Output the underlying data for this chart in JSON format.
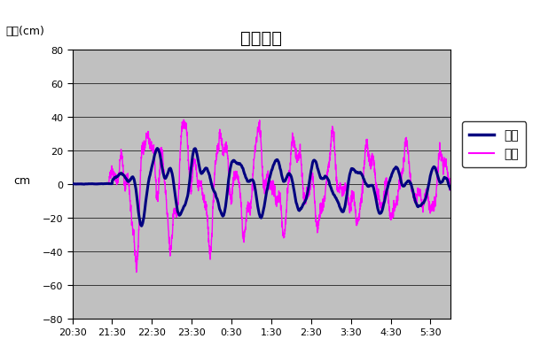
{
  "title": "カフルイ",
  "ylabel_top": "高さ(cm)",
  "ylabel_side": "cm",
  "legend_observed": "観測",
  "legend_computed": "計算",
  "ylim": [
    -80,
    80
  ],
  "yticks": [
    -80,
    -60,
    -40,
    -20,
    0,
    20,
    40,
    60,
    80
  ],
  "xlim": [
    0,
    570
  ],
  "xtick_labels": [
    "20:30",
    "21:30",
    "22:30",
    "23:30",
    "0:30",
    "1:30",
    "2:30",
    "3:30",
    "4:30",
    "5:30"
  ],
  "xtick_positions": [
    0,
    60,
    120,
    180,
    240,
    300,
    360,
    420,
    480,
    540
  ],
  "observed_color": "#000080",
  "computed_color": "#FF00FF",
  "background_color": "#C0C0C0",
  "observed_linewidth": 2.2,
  "computed_linewidth": 1.0,
  "title_fontsize": 14,
  "label_fontsize": 9,
  "tick_fontsize": 8,
  "legend_fontsize": 10
}
